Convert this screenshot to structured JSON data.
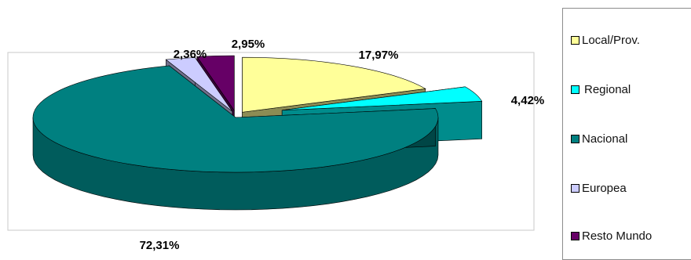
{
  "chart_data": {
    "type": "pie",
    "title": "",
    "categories": [
      "Local/Prov.",
      "Regional",
      "Nacional",
      "Europea",
      "Resto Mundo"
    ],
    "values": [
      17.97,
      4.42,
      72.31,
      2.36,
      2.95
    ],
    "labels": [
      "17,97%",
      "4,42%",
      "72,31%",
      "2,36%",
      "2,95%"
    ],
    "colors": [
      "#ffff99",
      "#00ffff",
      "#008080",
      "#ccccff",
      "#660066"
    ],
    "style": "3d-exploded",
    "legend_position": "right"
  }
}
